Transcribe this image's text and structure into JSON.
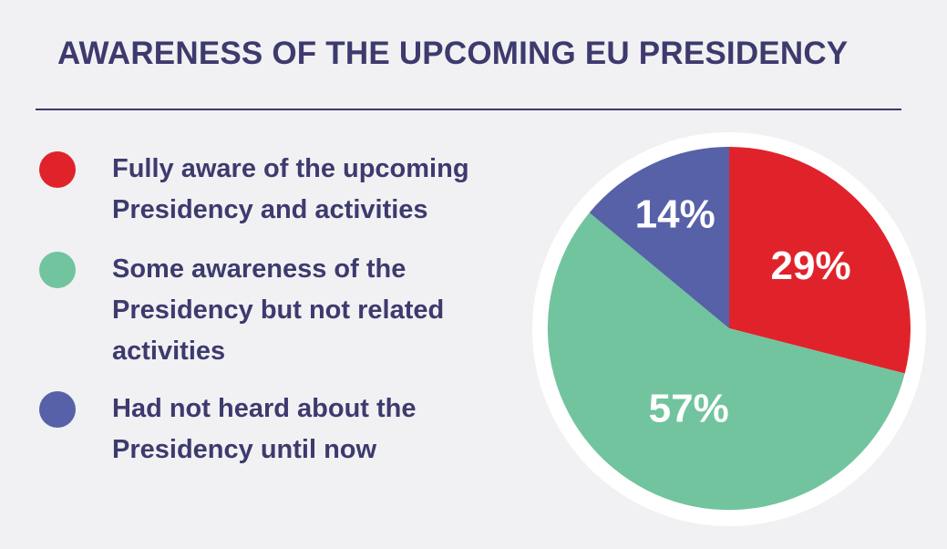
{
  "title": "AWARENESS OF THE UPCOMING EU PRESIDENCY",
  "colors": {
    "background": "#F1F1F3",
    "text": "#3D3A6E",
    "divider": "#3D3A6E",
    "ring": "#FFFFFF",
    "label_text": "#FFFFFF",
    "red": "#E0232B",
    "green": "#71C49E",
    "purple": "#5661A8"
  },
  "legend": {
    "items": [
      {
        "color": "#E0232B",
        "lines": [
          "Fully aware of the upcoming",
          "Presidency and activities"
        ]
      },
      {
        "color": "#71C49E",
        "lines": [
          "Some awareness of the",
          "Presidency but not related",
          "activities"
        ]
      },
      {
        "color": "#5661A8",
        "lines": [
          "Had not heard about the",
          "Presidency until now"
        ]
      }
    ]
  },
  "chart_data": {
    "type": "pie",
    "title": "AWARENESS OF THE UPCOMING EU PRESIDENCY",
    "labels": [
      "Fully aware of the upcoming Presidency and activities",
      "Some awareness of the Presidency but not related activities",
      "Had not heard about the Presidency until now"
    ],
    "values": [
      29,
      57,
      14
    ],
    "unit": "%",
    "data_labels": [
      "29%",
      "57%",
      "14%"
    ],
    "colors": [
      "#E0232B",
      "#71C49E",
      "#5661A8"
    ],
    "start_angle_deg": 0,
    "direction": "clockwise",
    "legend_position": "left"
  }
}
